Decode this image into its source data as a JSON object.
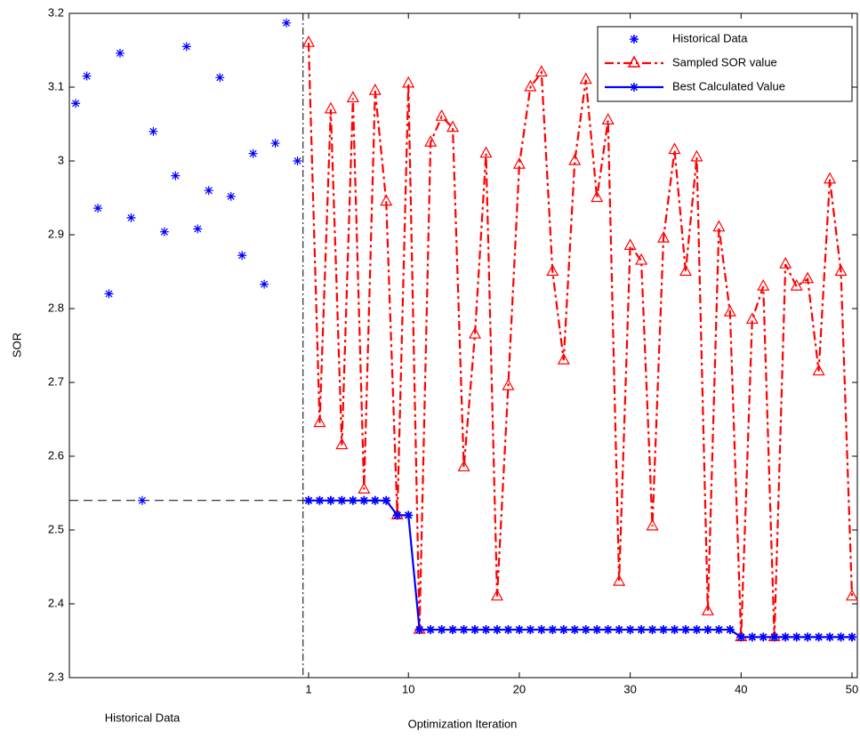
{
  "chart_data": {
    "type": "line",
    "xlabel": "Optimization Iteration",
    "ylabel": "SOR",
    "region_label": "Historical Data",
    "xlim": [
      -20.57,
      50.48
    ],
    "xticks": [
      1,
      10,
      20,
      30,
      40,
      50
    ],
    "ylim": [
      2.3,
      3.2
    ],
    "yticks": [
      2.3,
      2.4,
      2.5,
      2.6,
      2.7,
      2.8,
      2.9,
      3,
      3.1,
      3.2
    ],
    "divider_x": 0.5,
    "reference_y": 2.54,
    "legend": "upper right",
    "series": [
      {
        "name": "Historical Data",
        "color": "#0000ff",
        "marker": "star",
        "linestyle": "none",
        "x": [
          -20,
          -19,
          -18,
          -17,
          -16,
          -15,
          -14,
          -13,
          -12,
          -11,
          -10,
          -9,
          -8,
          -7,
          -6,
          -5,
          -4,
          -3,
          -2,
          -1,
          0
        ],
        "values": [
          3.078,
          3.115,
          2.936,
          2.82,
          3.146,
          2.923,
          2.54,
          3.04,
          2.904,
          2.98,
          3.155,
          2.908,
          2.96,
          3.113,
          2.952,
          2.872,
          3.01,
          2.833,
          3.024,
          3.187,
          3.0
        ]
      },
      {
        "name": "Sampled SOR value",
        "color": "#ff0000",
        "marker": "triangle",
        "linestyle": "dashdot",
        "x": [
          1,
          2,
          3,
          4,
          5,
          6,
          7,
          8,
          9,
          10,
          11,
          12,
          13,
          14,
          15,
          16,
          17,
          18,
          19,
          20,
          21,
          22,
          23,
          24,
          25,
          26,
          27,
          28,
          29,
          30,
          31,
          32,
          33,
          34,
          35,
          36,
          37,
          38,
          39,
          40,
          41,
          42,
          43,
          44,
          45,
          46,
          47,
          48,
          49,
          50
        ],
        "values": [
          3.16,
          2.645,
          3.07,
          2.615,
          3.085,
          2.555,
          3.095,
          2.945,
          2.52,
          3.105,
          2.365,
          3.025,
          3.06,
          3.045,
          2.585,
          2.765,
          3.01,
          2.41,
          2.695,
          2.995,
          3.1,
          3.12,
          2.85,
          2.73,
          3.0,
          3.11,
          2.95,
          3.055,
          2.43,
          2.885,
          2.865,
          2.505,
          2.895,
          3.015,
          2.85,
          3.005,
          2.39,
          2.91,
          2.795,
          2.355,
          2.785,
          2.83,
          2.355,
          2.86,
          2.83,
          2.84,
          2.715,
          2.975,
          2.85,
          2.41
        ]
      },
      {
        "name": "Best Calculated Value",
        "color": "#0000ff",
        "marker": "star",
        "linestyle": "solid",
        "x": [
          1,
          2,
          3,
          4,
          5,
          6,
          7,
          8,
          9,
          10,
          11,
          12,
          13,
          14,
          15,
          16,
          17,
          18,
          19,
          20,
          21,
          22,
          23,
          24,
          25,
          26,
          27,
          28,
          29,
          30,
          31,
          32,
          33,
          34,
          35,
          36,
          37,
          38,
          39,
          40,
          41,
          42,
          43,
          44,
          45,
          46,
          47,
          48,
          49,
          50
        ],
        "values": [
          2.54,
          2.54,
          2.54,
          2.54,
          2.54,
          2.54,
          2.54,
          2.54,
          2.52,
          2.52,
          2.365,
          2.365,
          2.365,
          2.365,
          2.365,
          2.365,
          2.365,
          2.365,
          2.365,
          2.365,
          2.365,
          2.365,
          2.365,
          2.365,
          2.365,
          2.365,
          2.365,
          2.365,
          2.365,
          2.365,
          2.365,
          2.365,
          2.365,
          2.365,
          2.365,
          2.365,
          2.365,
          2.365,
          2.365,
          2.355,
          2.355,
          2.355,
          2.355,
          2.355,
          2.355,
          2.355,
          2.355,
          2.355,
          2.355,
          2.355
        ]
      }
    ]
  }
}
